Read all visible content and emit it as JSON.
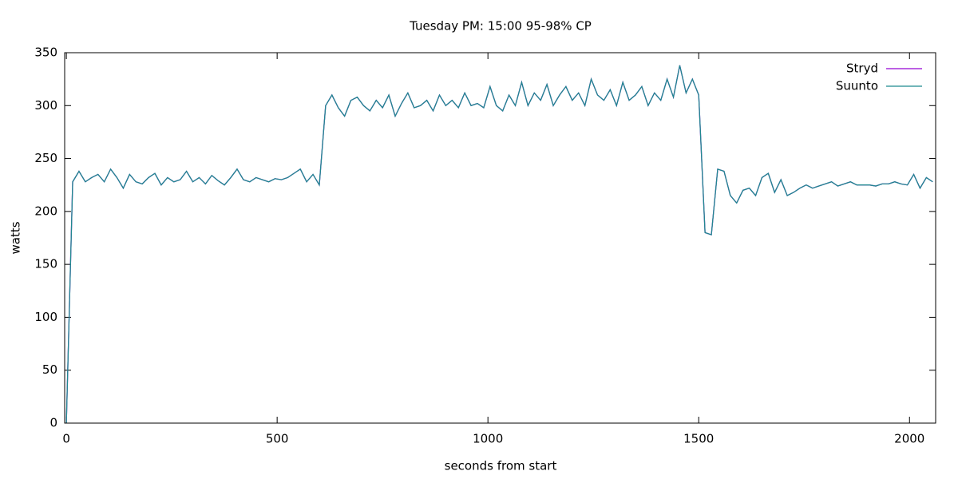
{
  "chart_data": {
    "type": "line",
    "title": "Tuesday PM: 15:00 95-98% CP",
    "xlabel": "seconds from start",
    "ylabel": "watts",
    "x": [
      0,
      15,
      30,
      45,
      60,
      75,
      90,
      105,
      120,
      135,
      150,
      165,
      180,
      195,
      210,
      225,
      240,
      255,
      270,
      285,
      300,
      315,
      330,
      345,
      360,
      375,
      390,
      405,
      420,
      435,
      450,
      465,
      480,
      495,
      510,
      525,
      540,
      555,
      570,
      585,
      600,
      615,
      630,
      645,
      660,
      675,
      690,
      705,
      720,
      735,
      750,
      765,
      780,
      795,
      810,
      825,
      840,
      855,
      870,
      885,
      900,
      915,
      930,
      945,
      960,
      975,
      990,
      1005,
      1020,
      1035,
      1050,
      1065,
      1080,
      1095,
      1110,
      1125,
      1140,
      1155,
      1170,
      1185,
      1200,
      1215,
      1230,
      1245,
      1260,
      1275,
      1290,
      1305,
      1320,
      1335,
      1350,
      1365,
      1380,
      1395,
      1410,
      1425,
      1440,
      1455,
      1470,
      1485,
      1500,
      1515,
      1530,
      1545,
      1560,
      1575,
      1590,
      1605,
      1620,
      1635,
      1650,
      1665,
      1680,
      1695,
      1710,
      1725,
      1740,
      1755,
      1770,
      1785,
      1800,
      1815,
      1830,
      1845,
      1860,
      1875,
      1890,
      1905,
      1920,
      1935,
      1950,
      1965,
      1980,
      1995,
      2010,
      2025,
      2040,
      2055
    ],
    "series": [
      {
        "name": "Stryd",
        "color": "#9400d3",
        "values": [
          0,
          228,
          238,
          228,
          232,
          235,
          228,
          240,
          232,
          222,
          235,
          228,
          226,
          232,
          236,
          225,
          232,
          228,
          230,
          238,
          228,
          232,
          226,
          234,
          229,
          225,
          232,
          240,
          230,
          228,
          232,
          230,
          228,
          231,
          230,
          232,
          236,
          240,
          228,
          235,
          225,
          300,
          310,
          298,
          290,
          305,
          308,
          300,
          295,
          305,
          298,
          310,
          290,
          302,
          312,
          298,
          300,
          305,
          295,
          310,
          300,
          305,
          298,
          312,
          300,
          302,
          298,
          318,
          300,
          295,
          310,
          300,
          322,
          300,
          312,
          305,
          320,
          300,
          310,
          318,
          305,
          312,
          300,
          325,
          310,
          305,
          315,
          300,
          322,
          305,
          310,
          318,
          300,
          312,
          305,
          325,
          308,
          338,
          312,
          325,
          310,
          180,
          178,
          240,
          238,
          215,
          208,
          220,
          222,
          215,
          232,
          236,
          218,
          230,
          215,
          218,
          222,
          225,
          222,
          224,
          226,
          228,
          224,
          226,
          228,
          225,
          225,
          225,
          224,
          226,
          226,
          228,
          226,
          225,
          235,
          222,
          232,
          228
        ]
      },
      {
        "name": "Suunto",
        "color": "#1f8a8f",
        "values": [
          0,
          228,
          238,
          228,
          232,
          235,
          228,
          240,
          232,
          222,
          235,
          228,
          226,
          232,
          236,
          225,
          232,
          228,
          230,
          238,
          228,
          232,
          226,
          234,
          229,
          225,
          232,
          240,
          230,
          228,
          232,
          230,
          228,
          231,
          230,
          232,
          236,
          240,
          228,
          235,
          225,
          300,
          310,
          298,
          290,
          305,
          308,
          300,
          295,
          305,
          298,
          310,
          290,
          302,
          312,
          298,
          300,
          305,
          295,
          310,
          300,
          305,
          298,
          312,
          300,
          302,
          298,
          318,
          300,
          295,
          310,
          300,
          322,
          300,
          312,
          305,
          320,
          300,
          310,
          318,
          305,
          312,
          300,
          325,
          310,
          305,
          315,
          300,
          322,
          305,
          310,
          318,
          300,
          312,
          305,
          325,
          308,
          338,
          312,
          325,
          310,
          180,
          178,
          240,
          238,
          215,
          208,
          220,
          222,
          215,
          232,
          236,
          218,
          230,
          215,
          218,
          222,
          225,
          222,
          224,
          226,
          228,
          224,
          226,
          228,
          225,
          225,
          225,
          224,
          226,
          226,
          228,
          226,
          225,
          235,
          222,
          232,
          228
        ]
      }
    ],
    "xlim": [
      -4,
      2062
    ],
    "xticks": [
      0,
      500,
      1000,
      1500,
      2000
    ],
    "ylim": [
      0,
      350
    ],
    "yticks": [
      0,
      50,
      100,
      150,
      200,
      250,
      300,
      350
    ],
    "legend": "top-right"
  }
}
